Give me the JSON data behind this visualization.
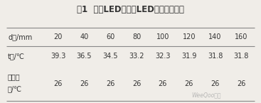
{
  "title": "表1  不同LED间距下LED的温度变化值",
  "col_header": [
    "d値/mm",
    "20",
    "40",
    "60",
    "80",
    "100",
    "120",
    "140",
    "160"
  ],
  "row0_label": "t値/℃",
  "row0_data": [
    "39.3",
    "36.5",
    "34.5",
    "33.2",
    "32.3",
    "31.9",
    "31.8",
    "31.8"
  ],
  "row1_label_line1": "环境温",
  "row1_label_line2": "度/℃",
  "row1_data": [
    "26",
    "26",
    "26",
    "26",
    "26",
    "26",
    "26",
    "26"
  ],
  "watermark": "WeeQoo维库",
  "bg_color": "#f0ede8",
  "text_color": "#333333",
  "line_color": "#888888",
  "title_fontsize": 8.5,
  "cell_fontsize": 7.0,
  "fig_width": 3.67,
  "fig_height": 1.45,
  "dpi": 100
}
